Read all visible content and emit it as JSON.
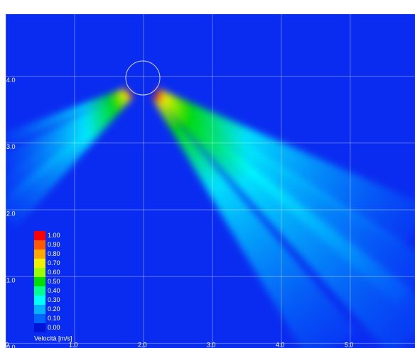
{
  "chart_data": {
    "type": "velocity-field",
    "xlim": [
      0,
      5.94
    ],
    "ylim": [
      -0.07,
      4.93
    ],
    "xticks": [
      {
        "value": 0,
        "label": "0.0"
      },
      {
        "value": 1,
        "label": "1.0"
      },
      {
        "value": 2,
        "label": "2.0"
      },
      {
        "value": 3,
        "label": "3.0"
      },
      {
        "value": 4,
        "label": "4.0"
      },
      {
        "value": 5,
        "label": "5.0"
      }
    ],
    "yticks": [
      {
        "value": 0,
        "label": "0.0"
      },
      {
        "value": 1,
        "label": "1.0"
      },
      {
        "value": 2,
        "label": "2.0"
      },
      {
        "value": 3,
        "label": "3.0"
      },
      {
        "value": 4,
        "label": "4.0"
      }
    ],
    "grid": true,
    "background": "#0a2cf0",
    "colorbar": {
      "title": "Velocità [m/s]",
      "levels": [
        {
          "value": 1.0,
          "label": "1.00",
          "color": "#ff0000"
        },
        {
          "value": 0.9,
          "label": "0.90",
          "color": "#ff5a00"
        },
        {
          "value": 0.8,
          "label": "0.80",
          "color": "#ffa800"
        },
        {
          "value": 0.7,
          "label": "0.70",
          "color": "#f0f000"
        },
        {
          "value": 0.6,
          "label": "0.60",
          "color": "#9cff00"
        },
        {
          "value": 0.5,
          "label": "0.50",
          "color": "#00e000"
        },
        {
          "value": 0.4,
          "label": "0.40",
          "color": "#00ff8c"
        },
        {
          "value": 0.3,
          "label": "0.30",
          "color": "#00ffff"
        },
        {
          "value": 0.2,
          "label": "0.20",
          "color": "#00b4ff"
        },
        {
          "value": 0.1,
          "label": "0.10",
          "color": "#0064ff"
        },
        {
          "value": 0.0,
          "label": "0.00",
          "color": "#0014d8"
        }
      ]
    }
  }
}
